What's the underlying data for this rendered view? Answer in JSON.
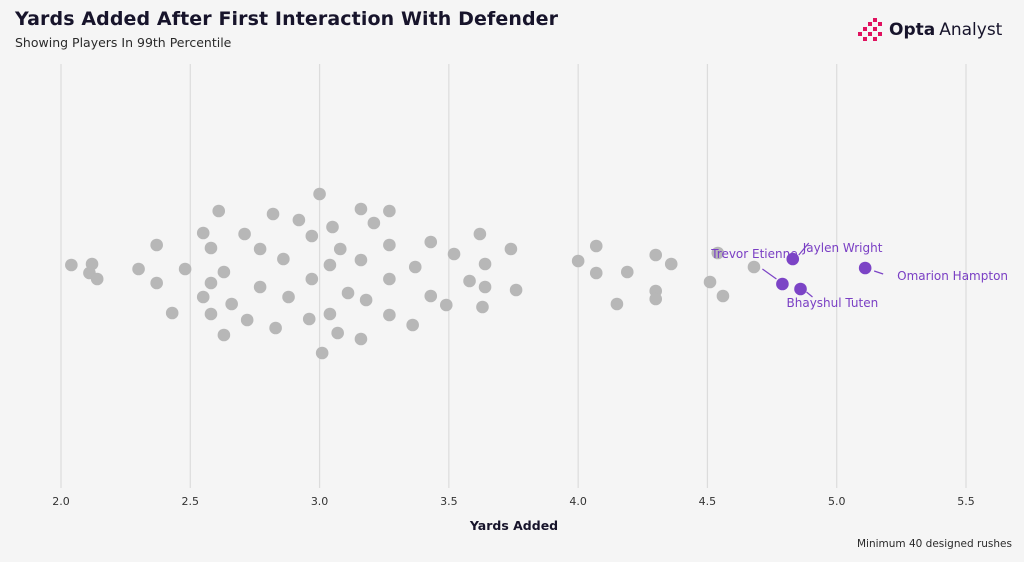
{
  "title": "Yards Added After First Interaction With Defender",
  "subtitle": "Showing Players In 99th Percentile",
  "brand": {
    "bold": "Opta",
    "light": "Analyst",
    "logo_icon": "opta-bars-icon"
  },
  "footnote": "Minimum 40 designed rushes",
  "colors": {
    "dot": "#b7b7b7",
    "highlight": "#7c44c6",
    "grid": "#dcdcdc",
    "logo_pink": "#e0115f"
  },
  "chart_data": {
    "type": "scatter",
    "title": "Yards Added After First Interaction With Defender",
    "subtitle": "Showing Players In 99th Percentile",
    "xlabel": "Yards Added",
    "ylabel": "",
    "xlim": [
      2.0,
      5.5
    ],
    "xticks": [
      "2.0",
      "2.5",
      "3.0",
      "3.5",
      "4.0",
      "4.5",
      "5.0",
      "5.5"
    ],
    "grid": true,
    "beeswarm": true,
    "points": [
      {
        "x": 2.04,
        "y": 0.4
      },
      {
        "x": 2.12,
        "y": 0.45
      },
      {
        "x": 2.11,
        "y": 0.0
      },
      {
        "x": 2.14,
        "y": -0.3
      },
      {
        "x": 2.3,
        "y": 0.2
      },
      {
        "x": 2.37,
        "y": 1.4
      },
      {
        "x": 2.37,
        "y": -0.5
      },
      {
        "x": 2.43,
        "y": -2.0
      },
      {
        "x": 2.48,
        "y": 0.2
      },
      {
        "x": 2.55,
        "y": 2.0
      },
      {
        "x": 2.58,
        "y": 1.25
      },
      {
        "x": 2.61,
        "y": 3.1
      },
      {
        "x": 2.63,
        "y": 0.05
      },
      {
        "x": 2.58,
        "y": -0.5
      },
      {
        "x": 2.55,
        "y": -1.2
      },
      {
        "x": 2.66,
        "y": -1.55
      },
      {
        "x": 2.58,
        "y": -2.05
      },
      {
        "x": 2.63,
        "y": -3.1
      },
      {
        "x": 2.71,
        "y": 1.95
      },
      {
        "x": 2.77,
        "y": 1.2
      },
      {
        "x": 2.77,
        "y": -0.7
      },
      {
        "x": 2.72,
        "y": -2.35
      },
      {
        "x": 2.82,
        "y": 2.95
      },
      {
        "x": 2.86,
        "y": 0.7
      },
      {
        "x": 2.88,
        "y": -1.2
      },
      {
        "x": 2.83,
        "y": -2.75
      },
      {
        "x": 2.92,
        "y": 2.65
      },
      {
        "x": 2.97,
        "y": 1.85
      },
      {
        "x": 2.97,
        "y": -0.3
      },
      {
        "x": 2.96,
        "y": -2.3
      },
      {
        "x": 3.0,
        "y": 3.95
      },
      {
        "x": 3.05,
        "y": 2.3
      },
      {
        "x": 3.04,
        "y": 0.4
      },
      {
        "x": 3.08,
        "y": 1.2
      },
      {
        "x": 3.11,
        "y": -1.0
      },
      {
        "x": 3.04,
        "y": -2.05
      },
      {
        "x": 3.07,
        "y": -3.0
      },
      {
        "x": 3.01,
        "y": -4.0
      },
      {
        "x": 3.16,
        "y": 3.2
      },
      {
        "x": 3.21,
        "y": 2.5
      },
      {
        "x": 3.16,
        "y": 0.65
      },
      {
        "x": 3.18,
        "y": -1.35
      },
      {
        "x": 3.16,
        "y": -3.3
      },
      {
        "x": 3.27,
        "y": 3.1
      },
      {
        "x": 3.27,
        "y": 1.4
      },
      {
        "x": 3.27,
        "y": -0.3
      },
      {
        "x": 3.27,
        "y": -2.1
      },
      {
        "x": 3.36,
        "y": -2.6
      },
      {
        "x": 3.37,
        "y": 0.3
      },
      {
        "x": 3.43,
        "y": 1.55
      },
      {
        "x": 3.43,
        "y": -1.15
      },
      {
        "x": 3.49,
        "y": -1.6
      },
      {
        "x": 3.52,
        "y": 0.95
      },
      {
        "x": 3.58,
        "y": -0.4
      },
      {
        "x": 3.62,
        "y": 1.95
      },
      {
        "x": 3.64,
        "y": 0.45
      },
      {
        "x": 3.64,
        "y": -0.7
      },
      {
        "x": 3.63,
        "y": -1.7
      },
      {
        "x": 3.74,
        "y": 1.2
      },
      {
        "x": 3.76,
        "y": -0.85
      },
      {
        "x": 4.0,
        "y": 0.6
      },
      {
        "x": 4.07,
        "y": 1.35
      },
      {
        "x": 4.07,
        "y": 0.0
      },
      {
        "x": 4.15,
        "y": -1.55
      },
      {
        "x": 4.19,
        "y": 0.05
      },
      {
        "x": 4.3,
        "y": 0.9
      },
      {
        "x": 4.3,
        "y": -0.9
      },
      {
        "x": 4.3,
        "y": -1.3
      },
      {
        "x": 4.36,
        "y": 0.45
      },
      {
        "x": 4.51,
        "y": -0.45
      },
      {
        "x": 4.56,
        "y": -1.15
      },
      {
        "x": 4.54,
        "y": 1.0
      },
      {
        "x": 4.68,
        "y": 0.3
      }
    ],
    "highlighted": [
      {
        "name": "Trevor Etienne",
        "x": 4.79,
        "y": -0.55
      },
      {
        "name": "Jaylen Wright",
        "x": 4.83,
        "y": 0.7
      },
      {
        "name": "Bhayshul Tuten",
        "x": 4.86,
        "y": -0.8
      },
      {
        "name": "Omarion Hampton",
        "x": 5.11,
        "y": 0.25
      }
    ]
  }
}
